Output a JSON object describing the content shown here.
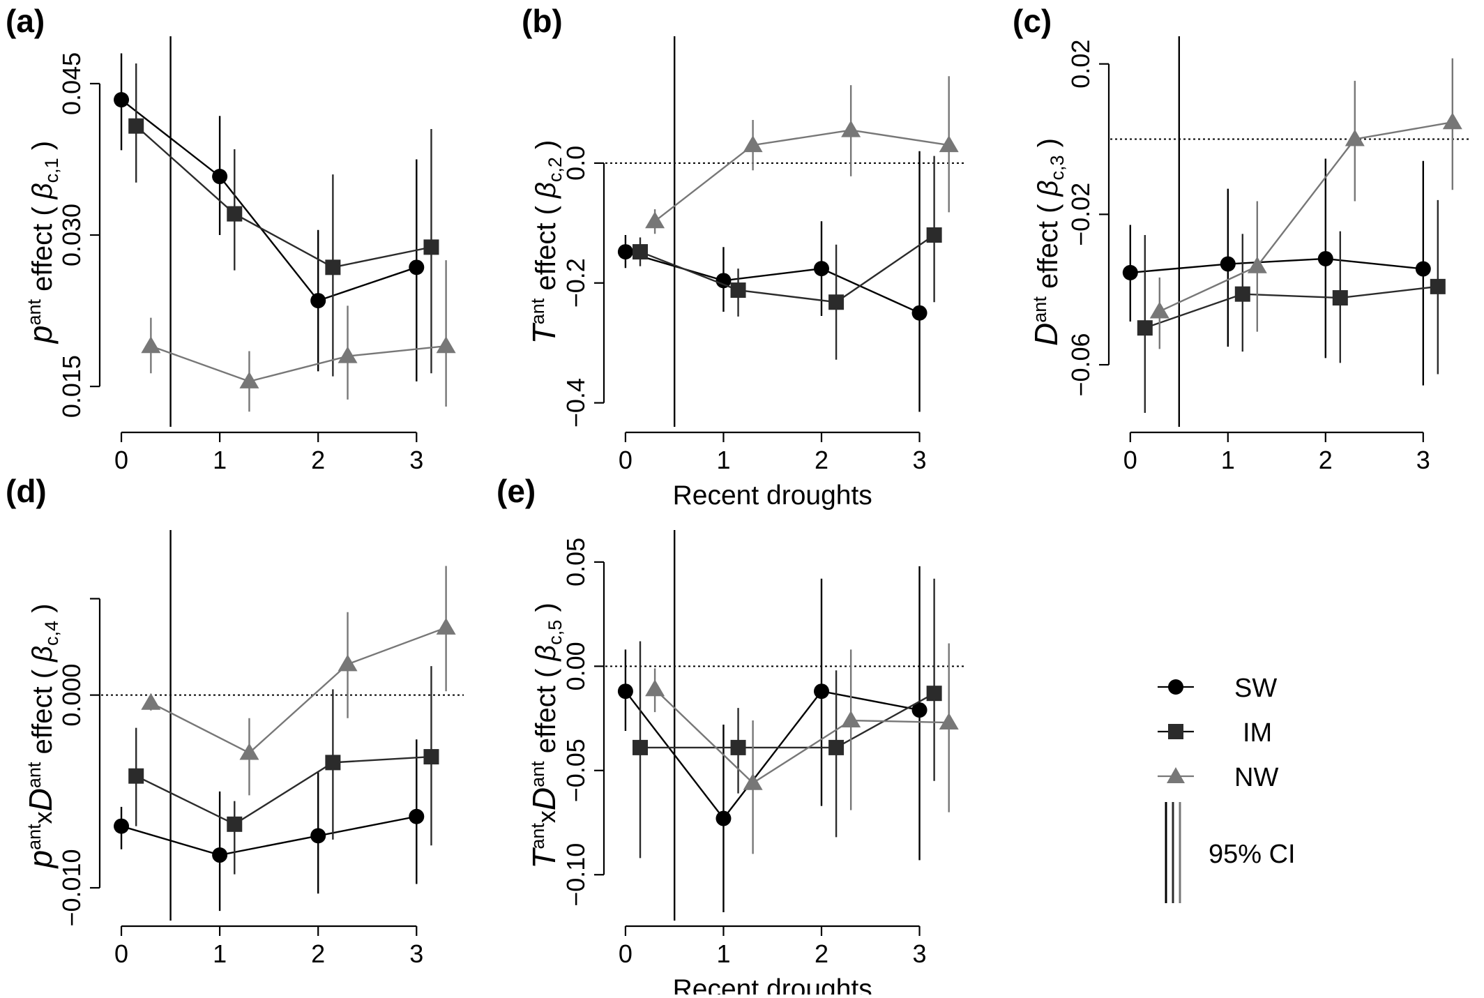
{
  "legend": {
    "entries": [
      "SW",
      "IM",
      "NW"
    ],
    "ci_label": "95% CI"
  },
  "colors": {
    "SW": "#000000",
    "IM": "#2b2b2b",
    "NW": "#777777"
  },
  "chart_data": [
    {
      "panel": "(a)",
      "type": "line",
      "ylabel": {
        "base": "p",
        "sup": "ant",
        "text": "effect",
        "beta_sub": "c,1"
      },
      "xlabel": "",
      "xticks": [
        "0",
        "1",
        "2",
        "3"
      ],
      "xlim": [
        -0.22,
        3.48
      ],
      "yticks": [
        0.015,
        0.03,
        0.045
      ],
      "ytick_labels": [
        "0.015",
        "0.030",
        "0.045"
      ],
      "ylim": [
        0.011,
        0.049
      ],
      "zero_line": false,
      "series": [
        {
          "name": "SW",
          "x": [
            0,
            1,
            2,
            3
          ],
          "y": [
            0.0434,
            0.0358,
            0.0235,
            0.0268
          ],
          "ci_low": [
            0.0384,
            0.03,
            0.0165,
            0.0155
          ],
          "ci_high": [
            0.048,
            0.0418,
            0.0305,
            0.0375
          ]
        },
        {
          "name": "IM",
          "x": [
            0.15,
            1.15,
            2.15,
            3.15
          ],
          "y": [
            0.0408,
            0.0321,
            0.0268,
            0.0288
          ],
          "ci_low": [
            0.0352,
            0.0265,
            0.016,
            0.0163
          ],
          "ci_high": [
            0.047,
            0.0385,
            0.036,
            0.0405
          ]
        },
        {
          "name": "NW",
          "x": [
            0.3,
            1.3,
            2.3,
            3.3
          ],
          "y": [
            0.019,
            0.0155,
            0.018,
            0.019
          ],
          "ci_low": [
            0.0163,
            0.0125,
            0.0137,
            0.013
          ],
          "ci_high": [
            0.0218,
            0.0185,
            0.023,
            0.0275
          ]
        }
      ]
    },
    {
      "panel": "(b)",
      "type": "line",
      "ylabel": {
        "base": "T",
        "sup": "ant",
        "text": "effect",
        "beta_sub": "c,2"
      },
      "xlabel": "Recent droughts",
      "xticks": [
        "0",
        "1",
        "2",
        "3"
      ],
      "xlim": [
        -0.22,
        3.48
      ],
      "yticks": [
        -0.4,
        -0.2,
        0.0
      ],
      "ytick_labels": [
        "−0.4",
        "−0.2",
        "0.0"
      ],
      "ylim": [
        -0.44,
        0.2
      ],
      "zero_line": true,
      "series": [
        {
          "name": "SW",
          "x": [
            0,
            1,
            2,
            3
          ],
          "y": [
            -0.148,
            -0.196,
            -0.176,
            -0.25
          ],
          "ci_low": [
            -0.175,
            -0.248,
            -0.255,
            -0.415
          ],
          "ci_high": [
            -0.12,
            -0.14,
            -0.097,
            0.02
          ]
        },
        {
          "name": "IM",
          "x": [
            0.15,
            1.15,
            2.15,
            3.15
          ],
          "y": [
            -0.148,
            -0.212,
            -0.232,
            -0.12
          ],
          "ci_low": [
            -0.172,
            -0.256,
            -0.328,
            -0.232
          ],
          "ci_high": [
            -0.124,
            -0.176,
            -0.136,
            0.012
          ]
        },
        {
          "name": "NW",
          "x": [
            0.3,
            1.3,
            2.3,
            3.3
          ],
          "y": [
            -0.097,
            0.03,
            0.055,
            0.03
          ],
          "ci_low": [
            -0.118,
            -0.012,
            -0.022,
            -0.082
          ],
          "ci_high": [
            -0.077,
            0.072,
            0.13,
            0.145
          ]
        }
      ]
    },
    {
      "panel": "(c)",
      "type": "line",
      "ylabel": {
        "base": "D",
        "sup": "ant",
        "text": "effect",
        "beta_sub": "c,3"
      },
      "xlabel": "",
      "xticks": [
        "0",
        "1",
        "2",
        "3"
      ],
      "xlim": [
        -0.22,
        3.48
      ],
      "yticks": [
        -0.06,
        -0.02,
        0.02
      ],
      "ytick_labels": [
        "−0.06",
        "−0.02",
        "0.02"
      ],
      "ylim": [
        -0.0765,
        0.0255
      ],
      "zero_line": true,
      "series": [
        {
          "name": "SW",
          "x": [
            0,
            1,
            2,
            3
          ],
          "y": [
            -0.0355,
            -0.0332,
            -0.0318,
            -0.0345
          ],
          "ci_low": [
            -0.0485,
            -0.0552,
            -0.0582,
            -0.0655
          ],
          "ci_high": [
            -0.0228,
            -0.0132,
            -0.0052,
            -0.0058
          ]
        },
        {
          "name": "IM",
          "x": [
            0.15,
            1.15,
            2.15,
            3.15
          ],
          "y": [
            -0.0502,
            -0.0412,
            -0.0422,
            -0.0392
          ],
          "ci_low": [
            -0.0728,
            -0.0565,
            -0.0595,
            -0.0625
          ],
          "ci_high": [
            -0.0255,
            -0.0252,
            -0.0245,
            -0.0162
          ]
        },
        {
          "name": "NW",
          "x": [
            0.3,
            1.3,
            2.3,
            3.3
          ],
          "y": [
            -0.0458,
            -0.0338,
            0.0,
            0.0045
          ],
          "ci_low": [
            -0.0558,
            -0.0512,
            -0.0165,
            -0.0135
          ],
          "ci_high": [
            -0.0368,
            -0.0165,
            0.0155,
            0.0215
          ]
        }
      ]
    },
    {
      "panel": "(d)",
      "type": "line",
      "ylabel": {
        "base": "p",
        "sup": "ant",
        "mid": "x",
        "base2": "D",
        "sup2": "ant",
        "text": "effect",
        "beta_sub": "c,4"
      },
      "xlabel": "",
      "xticks": [
        "0",
        "1",
        "2",
        "3"
      ],
      "xlim": [
        -0.22,
        3.48
      ],
      "yticks": [
        -0.01,
        0.0
      ],
      "ytick_labels": [
        "−0.010",
        "0.000"
      ],
      "extra_ytick": 0.005,
      "ylim": [
        -0.0117,
        0.0082
      ],
      "zero_line": true,
      "series": [
        {
          "name": "SW",
          "x": [
            0,
            1,
            2,
            3
          ],
          "y": [
            -0.0068,
            -0.0083,
            -0.0073,
            -0.0063
          ],
          "ci_low": [
            -0.008,
            -0.0112,
            -0.0103,
            -0.0098
          ],
          "ci_high": [
            -0.0058,
            -0.005,
            -0.004,
            -0.0023
          ]
        },
        {
          "name": "IM",
          "x": [
            0.15,
            1.15,
            2.15,
            3.15
          ],
          "y": [
            -0.0042,
            -0.0067,
            -0.0035,
            -0.0032
          ],
          "ci_low": [
            -0.0068,
            -0.0093,
            -0.0075,
            -0.0078
          ],
          "ci_high": [
            -0.0017,
            -0.0055,
            0.0003,
            0.0015
          ]
        },
        {
          "name": "NW",
          "x": [
            0.3,
            1.3,
            2.3,
            3.3
          ],
          "y": [
            -0.0004,
            -0.003,
            0.0016,
            0.0035
          ],
          "ci_low": [
            -0.0008,
            -0.0052,
            -0.0012,
            0.0002
          ],
          "ci_high": [
            0.0,
            -0.0012,
            0.0043,
            0.0067
          ]
        }
      ]
    },
    {
      "panel": "(e)",
      "type": "line",
      "ylabel": {
        "base": "T",
        "sup": "ant",
        "mid": "x",
        "base2": "D",
        "sup2": "ant",
        "text": "effect",
        "beta_sub": "c,5"
      },
      "xlabel": "Recent droughts",
      "xticks": [
        "0",
        "1",
        "2",
        "3"
      ],
      "xlim": [
        -0.22,
        3.48
      ],
      "yticks": [
        -0.1,
        -0.05,
        0.0,
        0.05
      ],
      "ytick_labels": [
        "−0.10",
        "−0.05",
        "0.00",
        "0.05"
      ],
      "ylim": [
        -0.122,
        0.062
      ],
      "zero_line": true,
      "series": [
        {
          "name": "SW",
          "x": [
            0,
            1,
            2,
            3
          ],
          "y": [
            -0.012,
            -0.073,
            -0.012,
            -0.021
          ],
          "ci_low": [
            -0.031,
            -0.118,
            -0.067,
            -0.093
          ],
          "ci_high": [
            0.008,
            -0.028,
            0.042,
            0.048
          ]
        },
        {
          "name": "IM",
          "x": [
            0.15,
            1.15,
            2.15,
            3.15
          ],
          "y": [
            -0.039,
            -0.039,
            -0.039,
            -0.013
          ],
          "ci_low": [
            -0.092,
            -0.061,
            -0.082,
            -0.055
          ],
          "ci_high": [
            0.012,
            -0.02,
            -0.002,
            0.042
          ]
        },
        {
          "name": "NW",
          "x": [
            0.3,
            1.3,
            2.3,
            3.3
          ],
          "y": [
            -0.011,
            -0.056,
            -0.026,
            -0.027
          ],
          "ci_low": [
            -0.022,
            -0.09,
            -0.069,
            -0.07
          ],
          "ci_high": [
            -0.001,
            -0.026,
            0.008,
            0.011
          ]
        }
      ]
    }
  ]
}
